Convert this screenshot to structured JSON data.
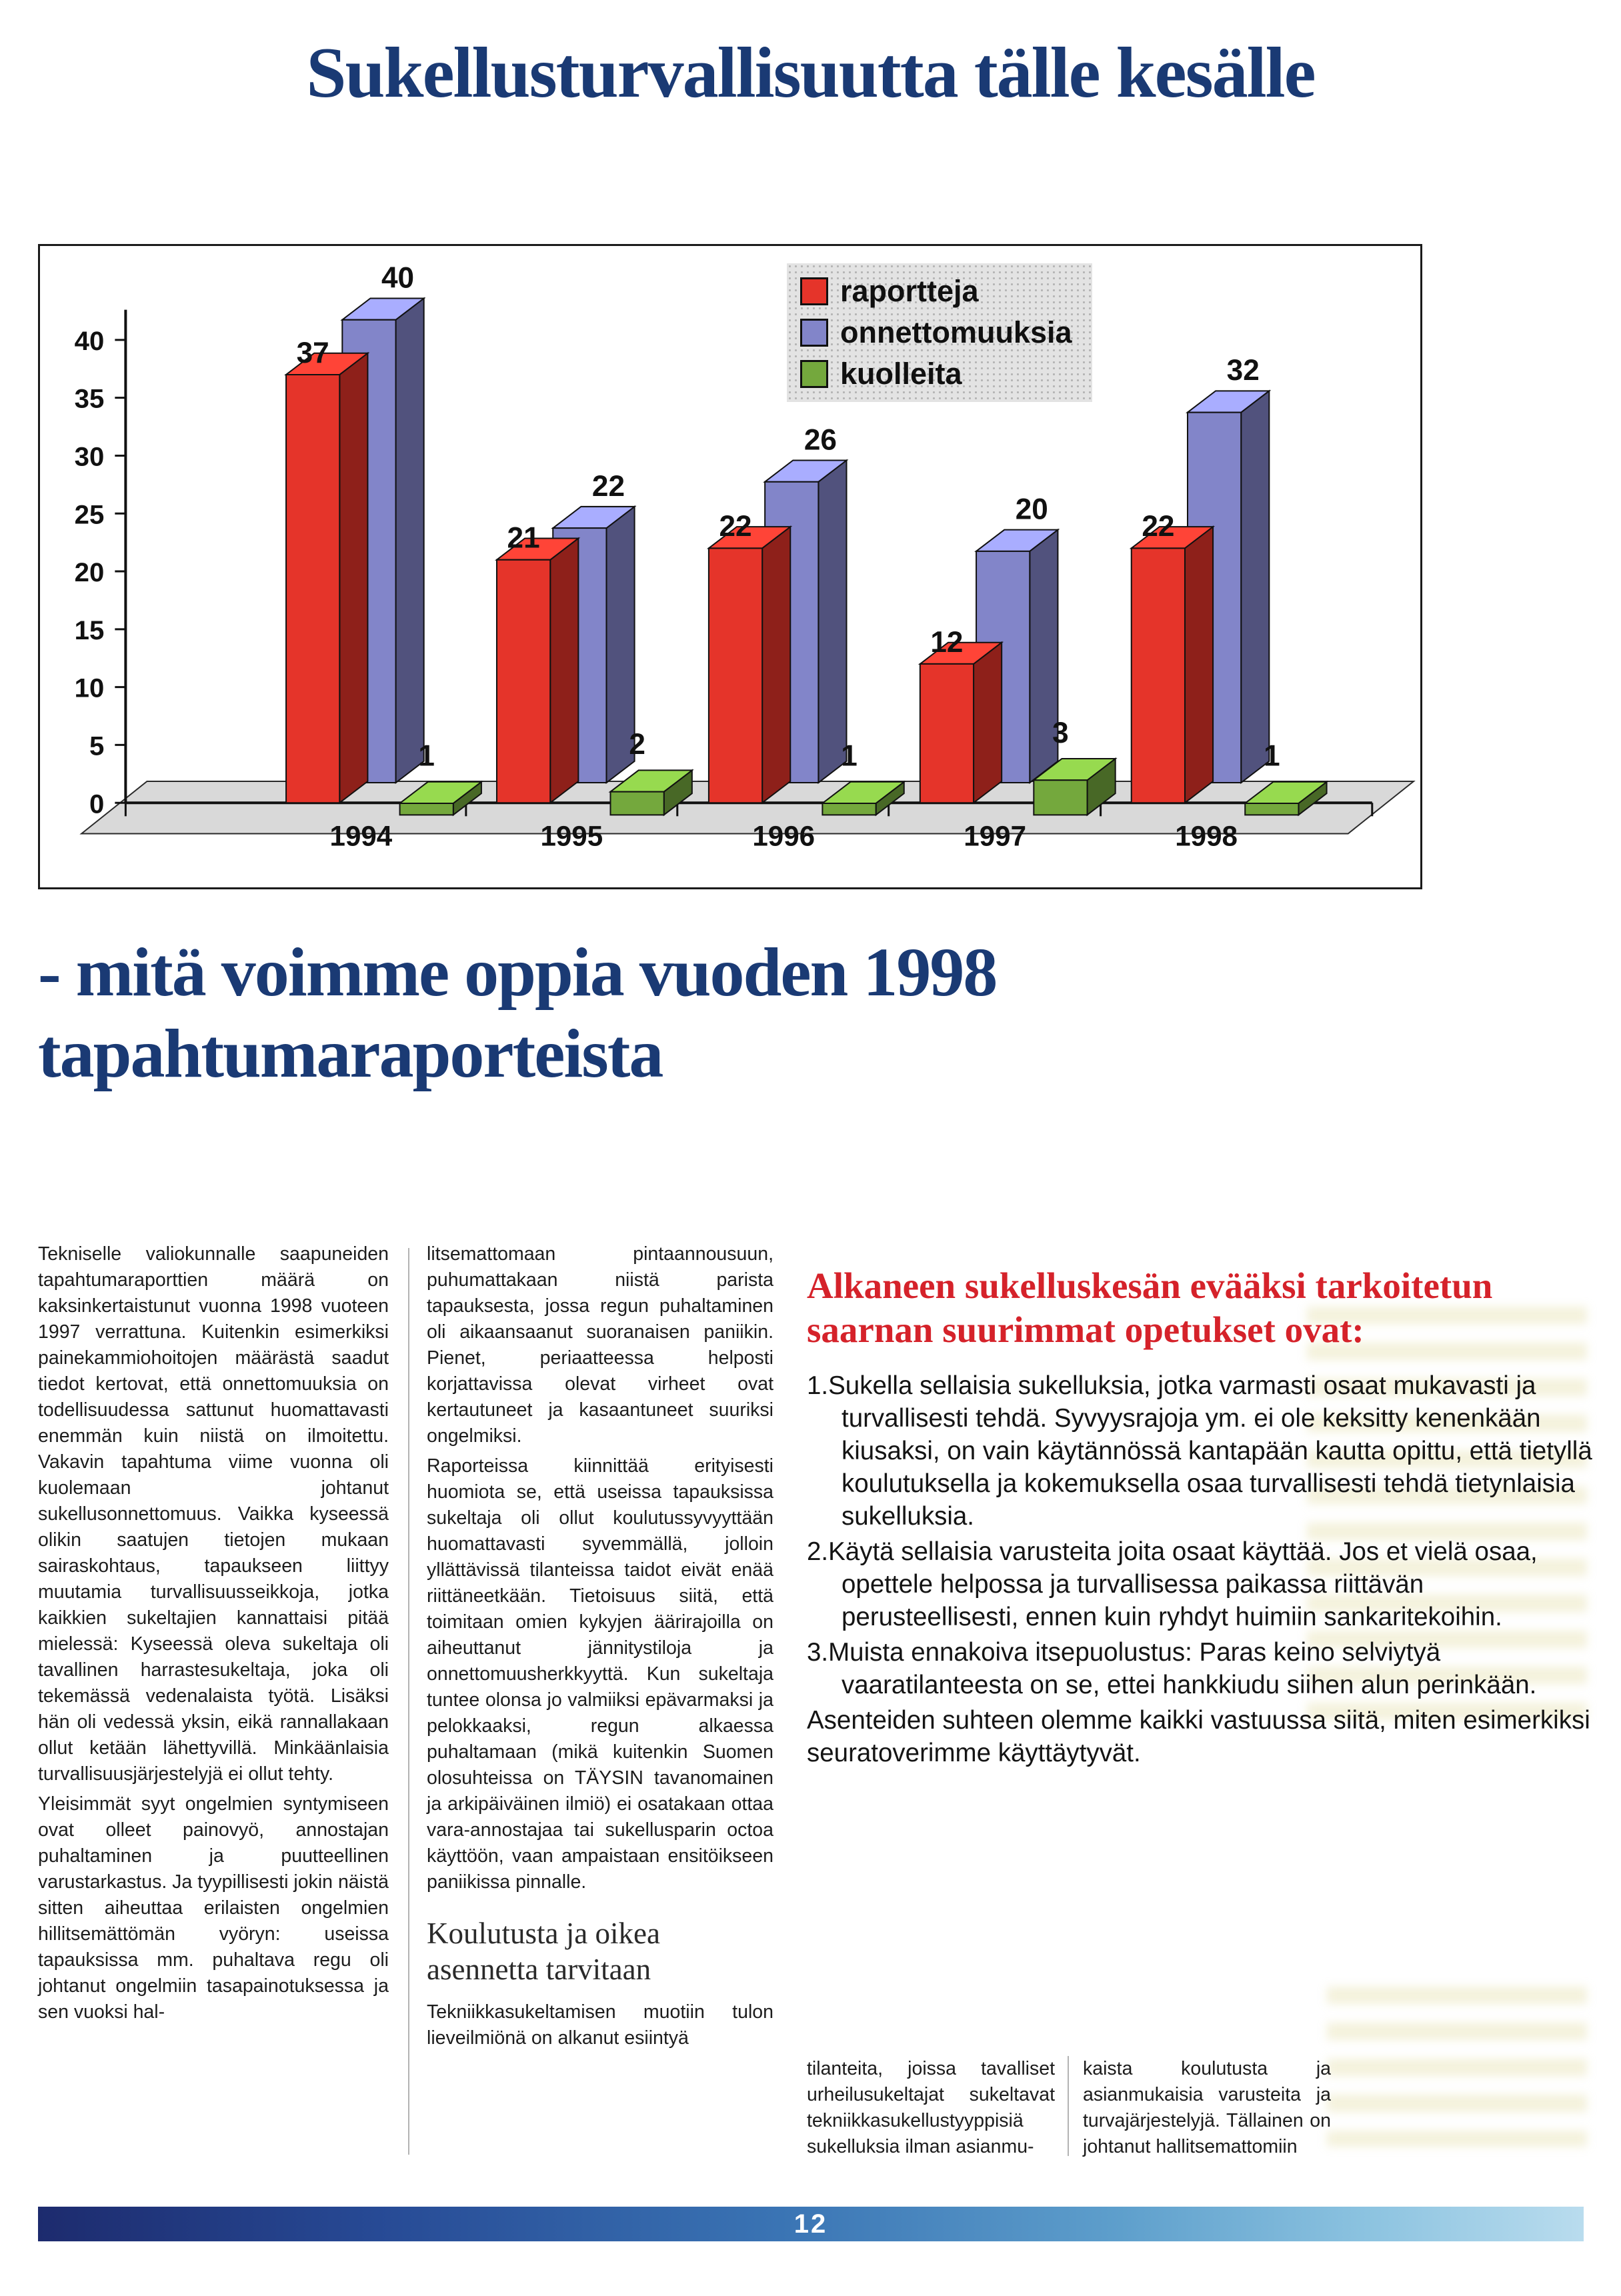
{
  "colors": {
    "navy": "#1a3a74",
    "heading-red": "#d5222a",
    "footer-dark": "#1d2b6e",
    "footer-mid": "#3a74b4",
    "footer-light": "#b9dcee"
  },
  "header": {
    "title": "Sukellusturvallisuutta tälle kesälle",
    "subtitle_line1": "- mitä voimme oppia vuoden 1998",
    "subtitle_line2": "tapahtumaraporteista"
  },
  "chart_data": {
    "type": "bar",
    "style": "3d-column",
    "title": "",
    "xlabel": "",
    "ylabel": "",
    "categories": [
      "1994",
      "1995",
      "1996",
      "1997",
      "1998"
    ],
    "series": [
      {
        "name": "raportteja",
        "color": "#e5342a",
        "values": [
          37,
          21,
          22,
          12,
          22
        ]
      },
      {
        "name": "onnettomuuksia",
        "color": "#8285c9",
        "values": [
          40,
          22,
          26,
          20,
          32
        ]
      },
      {
        "name": "kuolleita",
        "color": "#74a83d",
        "values": [
          1,
          2,
          1,
          3,
          1
        ]
      }
    ],
    "ylim": [
      0,
      40
    ],
    "yticks": [
      0,
      5,
      10,
      15,
      20,
      25,
      30,
      35,
      40
    ],
    "legend_position": "top-right-inside",
    "grid": false
  },
  "article": {
    "col1": {
      "p1": "Tekniselle valiokunnalle saapuneiden tapahtumaraporttien määrä on kaksinkertaistunut vuonna 1998 vuoteen 1997 verrattuna. Kuitenkin esimerkiksi painekammiohoitojen määrästä saadut tiedot kertovat, että onnettomuuksia on todellisuudessa sattunut huomattavasti enemmän kuin niistä on ilmoitettu. Vakavin tapahtuma viime vuonna oli kuolemaan johtanut sukellusonnettomuus. Vaikka kyseessä olikin saatujen tietojen mukaan sairaskohtaus, tapaukseen liittyy muutamia turvallisuusseikkoja, jotka kaikkien sukeltajien kannattaisi pitää mielessä: Kyseessä oleva sukeltaja oli tavallinen harrastesukeltaja, joka oli tekemässä vedenalaista työtä. Lisäksi hän oli vedessä yksin, eikä rannallakaan ollut ketään lähettyvillä. Minkäänlaisia turvallisuusjärjestelyjä ei ollut tehty.",
      "p2": "Yleisimmät syyt ongelmien syntymiseen ovat olleet painovyö, annostajan puhaltaminen ja puutteellinen varustarkastus. Ja tyypillisesti jokin näistä sitten aiheuttaa erilaisten ongelmien hillitsemättömän vyöryn: useissa tapauksissa mm. puhaltava regu oli johtanut ongelmiin tasapainotuksessa ja sen vuoksi hal-"
    },
    "col2": {
      "p1": "litsemattomaan pintaannousuun, puhumattakaan niistä parista tapauksesta, jossa regun puhaltaminen oli aikaansaanut suoranaisen paniikin. Pienet, periaatteessa helposti korjattavissa olevat virheet ovat kertautuneet ja kasaantuneet suuriksi ongelmiksi.",
      "p2": "Raporteissa kiinnittää erityisesti huomiota se, että useissa tapauksissa sukeltaja oli ollut koulutussyvyyttään huomattavasti syvemmällä, jolloin yllättävissä tilanteissa taidot eivät enää riittäneetkään. Tietoisuus siitä, että toimitaan omien kykyjen äärirajoilla on aiheuttanut jännitystiloja ja onnettomuusherkkyyttä. Kun sukeltaja tuntee olonsa jo valmiiksi epävarmaksi ja pelokkaaksi, regun alkaessa puhaltamaan (mikä kuitenkin Suomen olosuhteissa on TÄYSIN tavanomainen ja arkipäiväinen ilmiö) ei osatakaan ottaa vara-annostajaa tai sukellusparin octoa käyttöön, vaan ampaistaan ensitöikseen paniikissa pinnalle.",
      "heading": "Koulutusta ja oikea asennetta tarvitaan",
      "p3": "Tekniikkasukeltamisen muotiin tulon lieveilmiönä on alkanut esiintyä"
    },
    "right": {
      "heading": "Alkaneen sukelluskesän evääksi tarkoitetun saarnan suurimmat opetukset ovat:",
      "items": [
        "1.Sukella sellaisia sukelluksia, jotka varmasti osaat mukavasti ja turvallisesti tehdä. Syvyysrajoja ym. ei ole keksitty kenenkään kiusaksi, on vain käytännössä kantapään kautta opittu, että tietyllä koulutuksella ja kokemuksella osaa turvallisesti tehdä tietynlaisia sukelluksia.",
        "2.Käytä sellaisia varusteita joita osaat käyttää. Jos et vielä osaa, opettele helpossa ja turvallisessa paikassa riittävän perusteellisesti, ennen kuin ryhdyt huimiin sankaritekoihin.",
        "3.Muista ennakoiva itsepuolustus: Paras keino selviytyä vaaratilanteesta on se, ettei hankkiudu siihen alun perinkään."
      ],
      "closing": "Asenteiden suhteen olemme kaikki vastuussa siitä, miten esimerkiksi seuratoverimme käyttäytyvät."
    },
    "bottom": {
      "colA": "tilanteita, joissa tavalliset urheilusukeltajat sukeltavat tekniikkasukellustyyppisiä sukelluksia ilman asianmu-",
      "colB": "kaista koulutusta ja asianmukaisia varusteita ja turvajärjestelyjä. Tällainen on johtanut hallitsemattomiin"
    }
  },
  "footer": {
    "page_number": "12"
  }
}
